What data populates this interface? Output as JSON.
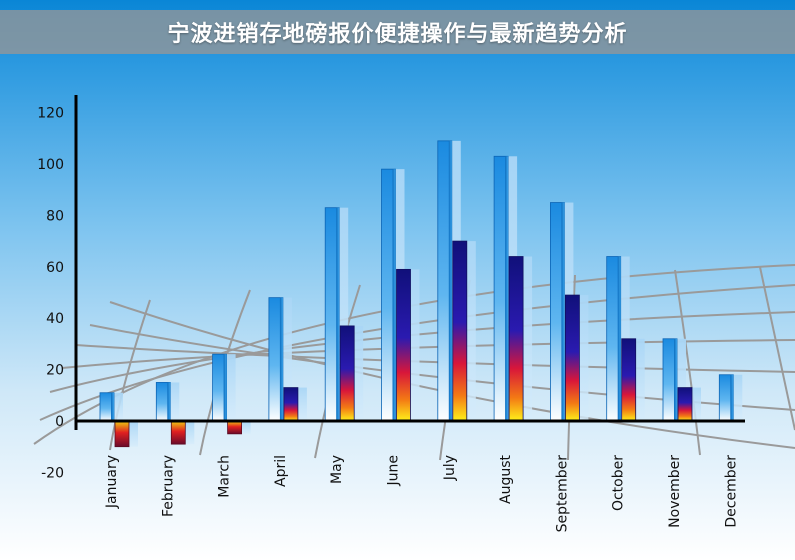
{
  "banner": {
    "title": "宁波进销存地磅报价便捷操作与最新趋势分析"
  },
  "chart_data": {
    "type": "bar",
    "title": "",
    "xlabel": "",
    "ylabel": "",
    "ylim": [
      -20,
      120
    ],
    "yticks": [
      -20,
      0,
      20,
      40,
      60,
      80,
      100,
      120
    ],
    "categories": [
      "January",
      "February",
      "March",
      "April",
      "May",
      "June",
      "July",
      "August",
      "September",
      "October",
      "November",
      "December"
    ],
    "series": [
      {
        "values": [
          11,
          15,
          26,
          48,
          83,
          98,
          109,
          103,
          85,
          64,
          32,
          18
        ],
        "color": "#1e8fe6"
      },
      {
        "values": [
          -10,
          -9,
          -5,
          13,
          37,
          59,
          70,
          64,
          49,
          32,
          13,
          null
        ],
        "color": "#1a1a9e"
      }
    ],
    "grid": false,
    "background": "perspective grid floor"
  }
}
